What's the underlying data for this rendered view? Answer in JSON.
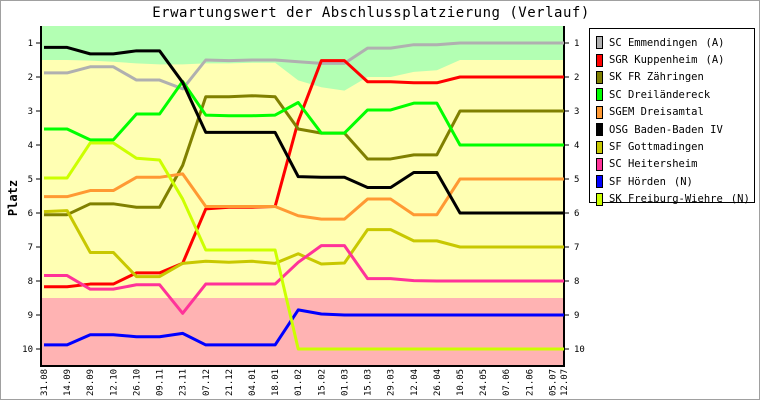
{
  "chart_data": {
    "type": "line",
    "title": "Erwartungswert der Abschlussplatzierung (Verlauf)",
    "ylabel": "Platz",
    "xlabel": "",
    "ylim": [
      10.5,
      0.5
    ],
    "y_ticks": [
      "1",
      "2",
      "3",
      "4",
      "5",
      "6",
      "7",
      "8",
      "9",
      "10"
    ],
    "x_labels": [
      "31.08",
      "14.09",
      "28.09",
      "12.10",
      "26.10",
      "09.11",
      "23.11",
      "07.12",
      "21.12",
      "04.01",
      "18.01",
      "01.02",
      "15.02",
      "01.03",
      "15.03",
      "29.03",
      "12.04",
      "26.04",
      "10.05",
      "24.05",
      "07.06",
      "21.06",
      "05.07",
      "12.07"
    ],
    "x_days": [
      0,
      14,
      28,
      42,
      56,
      70,
      84,
      98,
      112,
      126,
      140,
      154,
      168,
      182,
      196,
      210,
      224,
      238,
      252,
      266,
      280,
      294,
      308,
      315
    ],
    "zones": {
      "promotion_color": "#b3ffb3",
      "middle_color": "#ffffb3",
      "relegation_color": "#ffb3b3",
      "promotion_boundary": [
        1.5,
        1.5,
        1.52,
        1.55,
        1.6,
        1.63,
        1.63,
        1.6,
        1.6,
        1.58,
        1.58,
        2.1,
        2.3,
        2.4,
        2.0,
        2.0,
        1.85,
        1.8,
        1.5,
        1.5,
        1.5,
        1.5,
        1.5,
        1.5
      ],
      "relegation_boundary": 8.5
    },
    "series": [
      {
        "name": "SC Emmendingen",
        "tag": "(A)",
        "color": "#b0b0b0",
        "values": [
          1.88,
          1.88,
          1.7,
          1.7,
          2.09,
          2.09,
          2.35,
          1.5,
          1.52,
          1.5,
          1.5,
          1.55,
          1.6,
          1.6,
          1.15,
          1.15,
          1.05,
          1.05,
          1.0,
          1.0,
          1.0,
          1.0,
          1.0,
          1.0
        ]
      },
      {
        "name": "SGR Kuppenheim",
        "tag": "(A)",
        "color": "#ff0000",
        "values": [
          8.17,
          8.17,
          8.09,
          8.09,
          7.76,
          7.76,
          7.48,
          5.88,
          5.83,
          5.83,
          5.81,
          3.3,
          1.52,
          1.52,
          2.14,
          2.14,
          2.17,
          2.17,
          2.0,
          2.0,
          2.0,
          2.0,
          2.0,
          2.0
        ]
      },
      {
        "name": "SK FR Zähringen",
        "tag": "",
        "color": "#808000",
        "values": [
          6.05,
          6.05,
          5.73,
          5.73,
          5.83,
          5.83,
          4.6,
          2.58,
          2.58,
          2.55,
          2.58,
          3.53,
          3.65,
          3.65,
          4.41,
          4.41,
          4.29,
          4.29,
          3.0,
          3.0,
          3.0,
          3.0,
          3.0,
          3.0
        ]
      },
      {
        "name": "SC Dreiländereck",
        "tag": "",
        "color": "#00ff00",
        "values": [
          3.53,
          3.53,
          3.85,
          3.85,
          3.09,
          3.09,
          2.13,
          3.12,
          3.14,
          3.14,
          3.12,
          2.75,
          3.65,
          3.65,
          2.97,
          2.97,
          2.77,
          2.77,
          4.0,
          4.0,
          4.0,
          4.0,
          4.0,
          4.0
        ]
      },
      {
        "name": "SGEM Dreisamtal",
        "tag": "",
        "color": "#ff9933",
        "values": [
          5.52,
          5.52,
          5.34,
          5.34,
          4.95,
          4.95,
          4.85,
          5.81,
          5.81,
          5.81,
          5.81,
          6.08,
          6.18,
          6.18,
          5.59,
          5.59,
          6.05,
          6.05,
          5.0,
          5.0,
          5.0,
          5.0,
          5.0,
          5.0
        ]
      },
      {
        "name": "OSG Baden-Baden IV",
        "tag": "",
        "color": "#000000",
        "values": [
          1.13,
          1.13,
          1.32,
          1.32,
          1.23,
          1.23,
          2.16,
          3.63,
          3.63,
          3.63,
          3.63,
          4.93,
          4.95,
          4.95,
          5.25,
          5.25,
          4.81,
          4.81,
          6.0,
          6.0,
          6.0,
          6.0,
          6.0,
          6.0
        ]
      },
      {
        "name": "SF Gottmadingen",
        "tag": "",
        "color": "#c8c800",
        "values": [
          5.96,
          5.93,
          7.16,
          7.16,
          7.87,
          7.87,
          7.48,
          7.42,
          7.45,
          7.42,
          7.48,
          7.2,
          7.5,
          7.47,
          6.49,
          6.49,
          6.82,
          6.82,
          7.0,
          7.0,
          7.0,
          7.0,
          7.0,
          7.0
        ]
      },
      {
        "name": "SC Heitersheim",
        "tag": "",
        "color": "#ff3399",
        "values": [
          7.84,
          7.84,
          8.24,
          8.24,
          8.11,
          8.11,
          8.95,
          8.09,
          8.09,
          8.09,
          8.09,
          7.45,
          6.96,
          6.96,
          7.93,
          7.93,
          7.99,
          8.0,
          8.0,
          8.0,
          8.0,
          8.0,
          8.0,
          8.0
        ]
      },
      {
        "name": "SF Hörden",
        "tag": "(N)",
        "color": "#0000ff",
        "values": [
          9.88,
          9.88,
          9.58,
          9.58,
          9.64,
          9.64,
          9.54,
          9.88,
          9.88,
          9.88,
          9.88,
          8.85,
          8.97,
          9.0,
          9.0,
          9.0,
          9.0,
          9.0,
          9.0,
          9.0,
          9.0,
          9.0,
          9.0,
          9.0
        ]
      },
      {
        "name": "SK Freiburg-Wiehre",
        "tag": "(N)",
        "color": "#ccff00",
        "values": [
          4.97,
          4.97,
          3.94,
          3.94,
          4.39,
          4.44,
          5.59,
          7.09,
          7.09,
          7.09,
          7.09,
          10.0,
          10.0,
          10.0,
          10.0,
          10.0,
          10.0,
          10.0,
          10.0,
          10.0,
          10.0,
          10.0,
          10.0,
          10.0
        ]
      }
    ]
  }
}
